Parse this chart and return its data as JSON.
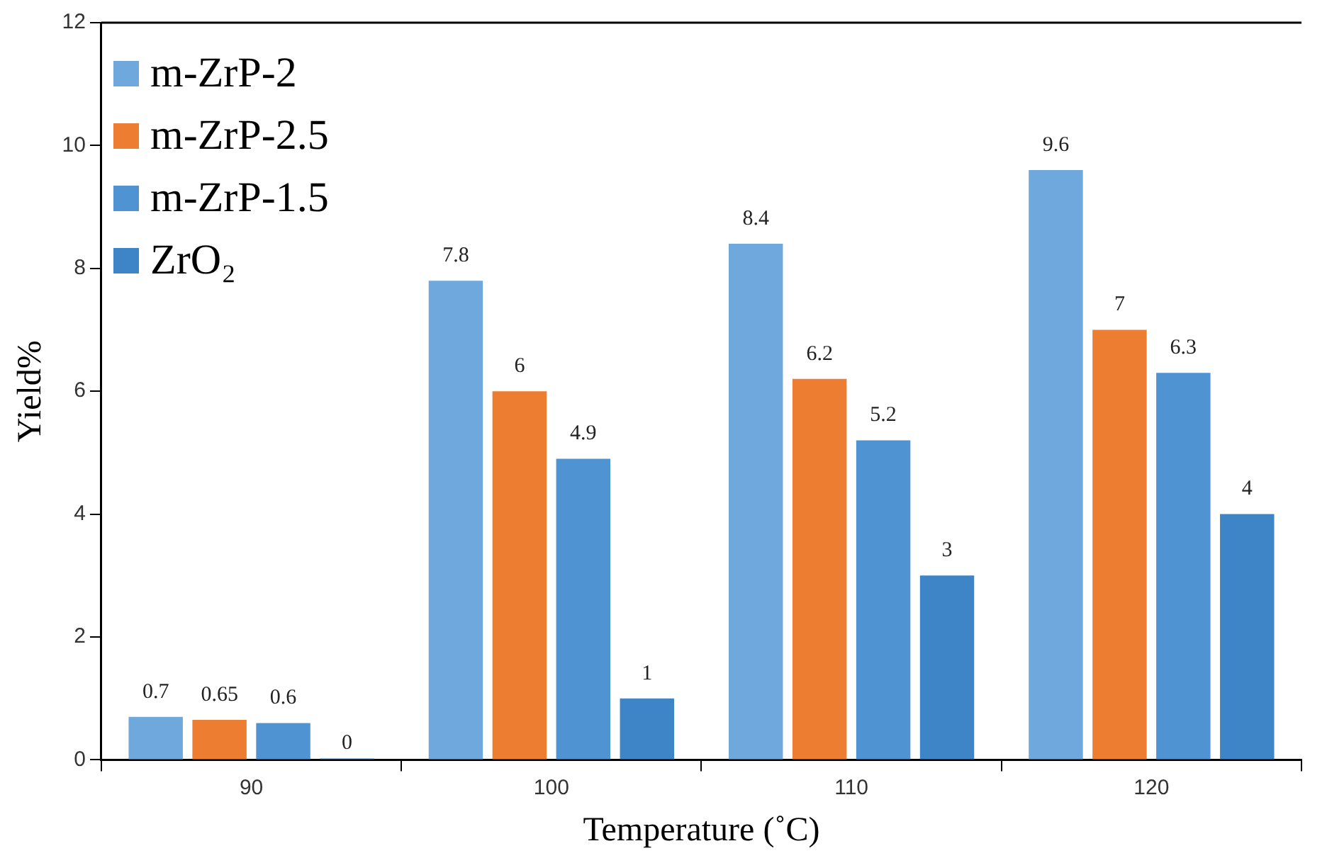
{
  "chart_data": {
    "type": "bar",
    "xlabel": "Temperature (˚C)",
    "ylabel": "Yield%",
    "categories": [
      "90",
      "100",
      "110",
      "120"
    ],
    "series": [
      {
        "name": "m-ZrP-2",
        "color": "#6fa8dc",
        "values": [
          0.7,
          7.8,
          8.4,
          9.6
        ]
      },
      {
        "name": "m-ZrP-2.5",
        "color": "#ed7d31",
        "values": [
          0.65,
          6,
          6.2,
          7
        ]
      },
      {
        "name": "m-ZrP-1.5",
        "color": "#4f93d2",
        "values": [
          0.6,
          4.9,
          5.2,
          6.3
        ]
      },
      {
        "name": "ZrO₂",
        "color": "#3d85c6",
        "values": [
          0,
          1,
          3,
          4
        ]
      }
    ],
    "ylim": [
      0,
      12
    ],
    "yticks": [
      0,
      2,
      4,
      6,
      8,
      10,
      12
    ],
    "grid": false,
    "legend": "top left",
    "data_labels": true
  }
}
